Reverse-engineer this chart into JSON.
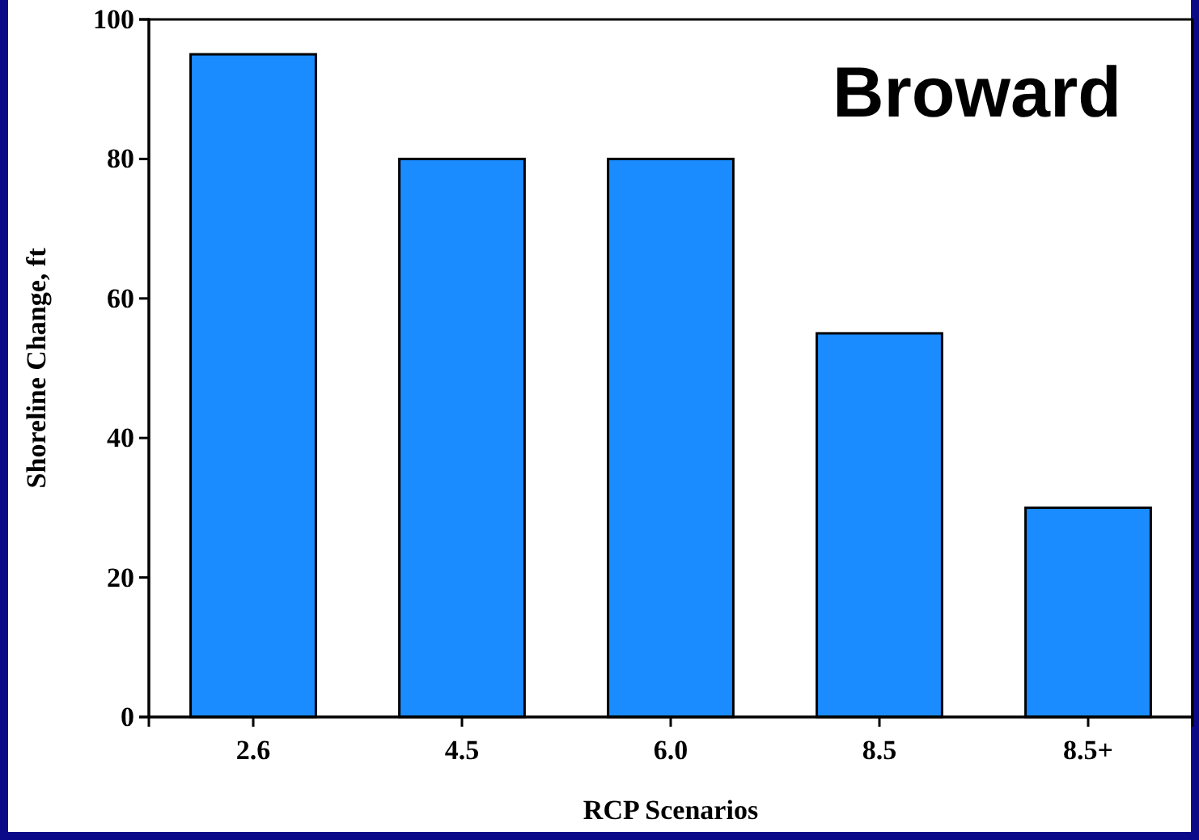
{
  "chart_data": {
    "type": "bar",
    "categories": [
      "2.6",
      "4.5",
      "6.0",
      "8.5",
      "8.5+"
    ],
    "values": [
      95,
      80,
      80,
      55,
      30
    ],
    "color": "#1a8cff",
    "xlabel": "RCP Scenarios",
    "ylabel": "Shoreline Change, ft",
    "annotations": [
      "Broward"
    ],
    "ylim": [
      0,
      100
    ],
    "yticks": [
      0,
      20,
      40,
      60,
      80,
      100
    ],
    "grid": false
  }
}
